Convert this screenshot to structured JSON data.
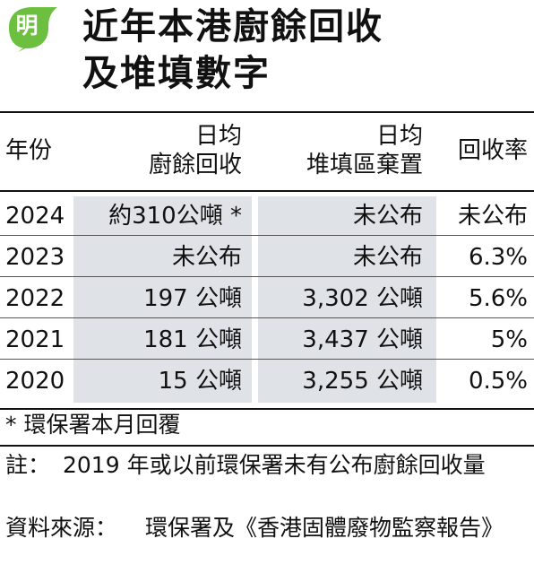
{
  "brand": {
    "logo_char": "明",
    "logo_color": "#6cbf3f"
  },
  "title": {
    "line1": "近年本港廚餘回收",
    "line2": "及堆填數字"
  },
  "table": {
    "headers": {
      "year": "年份",
      "food_line1": "日均",
      "food_line2": "廚餘回收",
      "land_line1": "日均",
      "land_line2": "堆填區棄置",
      "rate": "回收率"
    },
    "rows": [
      {
        "year": "2024",
        "food": "約310公噸 *",
        "landfill": "未公布",
        "rate": "未公布"
      },
      {
        "year": "2023",
        "food": "未公布",
        "landfill": "未公布",
        "rate": "6.3%"
      },
      {
        "year": "2022",
        "food": "197 公噸",
        "landfill": "3,302 公噸",
        "rate": "5.6%"
      },
      {
        "year": "2021",
        "food": "181 公噸",
        "landfill": "3,437 公噸",
        "rate": "5%"
      },
      {
        "year": "2020",
        "food": "15 公噸",
        "landfill": "3,255 公噸",
        "rate": "0.5%"
      }
    ],
    "shade_color": "#dfe3e8"
  },
  "footnote": "* 環保署本月回覆",
  "notes": {
    "note_label": "註：",
    "note_text": "2019 年或以前環保署未有公布廚餘回收量",
    "source_label": "資料來源：",
    "source_text": "環保署及《香港固體廢物監察報告》"
  }
}
